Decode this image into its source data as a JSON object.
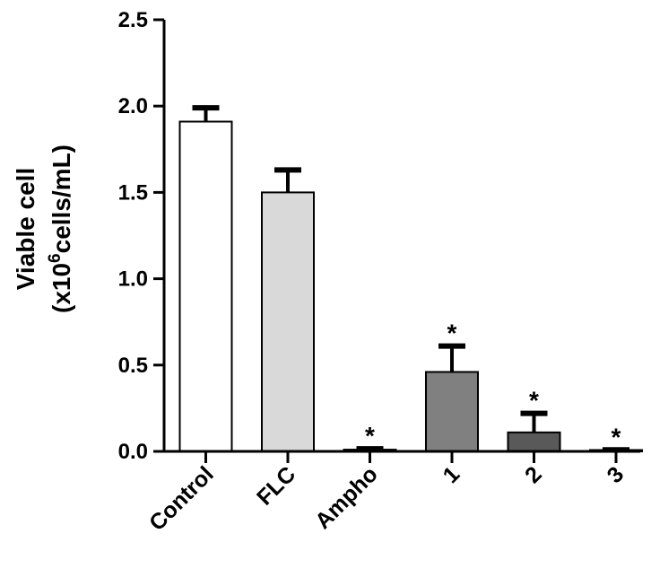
{
  "chart_data": {
    "type": "bar",
    "categories": [
      "Control",
      "FLC",
      "Ampho",
      "1",
      "2",
      "3"
    ],
    "values": [
      1.91,
      1.5,
      0.01,
      0.46,
      0.11,
      0.005
    ],
    "errors": [
      0.08,
      0.13,
      0.005,
      0.15,
      0.11,
      0.004
    ],
    "significance": [
      "",
      "",
      "*",
      "*",
      "*",
      "*"
    ],
    "colors": [
      "#ffffff",
      "#d9d9d9",
      "#a6a6a6",
      "#808080",
      "#595959",
      "#404040"
    ],
    "title": "",
    "xlabel": "",
    "ylabel_line1": "Viable cell",
    "ylabel_line2_pre": "(x10",
    "ylabel_line2_sup": "6",
    "ylabel_line2_post": "cells/mL)",
    "ylim": [
      0,
      2.5
    ],
    "yticks": [
      "0.0",
      "0.5",
      "1.0",
      "1.5",
      "2.0",
      "2.5"
    ],
    "grid": false
  }
}
